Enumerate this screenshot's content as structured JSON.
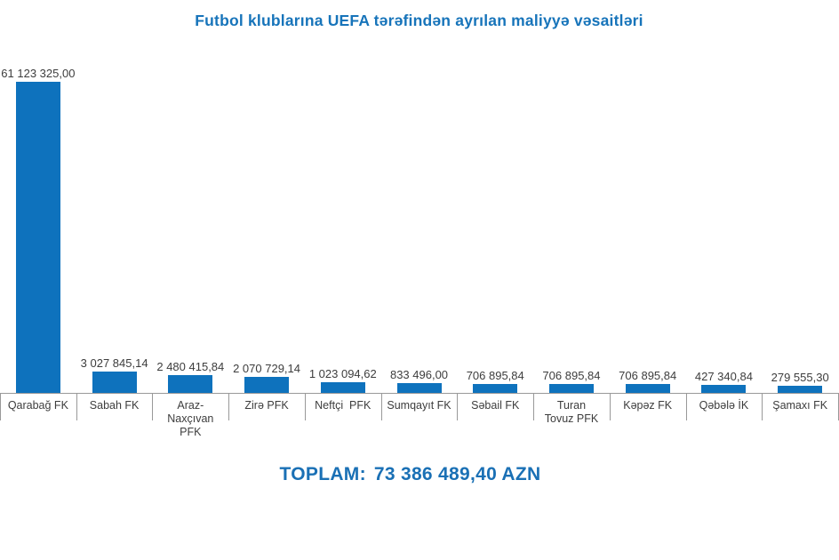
{
  "title": "Futbol klublarına UEFA tərəfindən ayrılan maliyyə vəsaitləri",
  "total": {
    "label": "TOPLAM:",
    "amount": "73 386 489,40 AZN"
  },
  "colors": {
    "bar": "#0e72bd",
    "title": "#1774ba",
    "total": "#1a70b5",
    "axis": "#999999",
    "text": "#3d3d3d"
  },
  "chart_data": {
    "type": "bar",
    "title": "Futbol klublarına UEFA tərəfindən ayrılan maliyyə vəsaitləri",
    "xlabel": "",
    "ylabel": "",
    "unit": "AZN",
    "grid": false,
    "legend": false,
    "ylim": [
      0,
      61123325
    ],
    "categories": [
      "Qarabağ FK",
      "Sabah FK",
      "Araz-Naxçıvan PFK",
      "Zirə PFK",
      "Neftçi PFK",
      "Sumqayıt FK",
      "Səbail FK",
      "Turan Tovuz PFK",
      "Kəpəz FK",
      "Qəbələ İK",
      "Şamaxı FK"
    ],
    "values": [
      61123325.0,
      3027845.14,
      2480415.84,
      2070729.14,
      1023094.62,
      833496.0,
      706895.84,
      706895.84,
      706895.84,
      427340.84,
      279555.3
    ],
    "value_labels": [
      "61 123 325,00",
      "3 027 845,14",
      "2 480 415,84",
      "2 070 729,14",
      "1 023 094,62",
      "833 496,00",
      "706 895,84",
      "706 895,84",
      "706 895,84",
      "427 340,84",
      "279 555,30"
    ],
    "tick_lines": [
      [
        "Qarabağ FK"
      ],
      [
        "Sabah FK"
      ],
      [
        "Araz-",
        "Naxçıvan",
        "PFK"
      ],
      [
        "Zirə PFK"
      ],
      [
        "Neftçi  PFK"
      ],
      [
        "Sumqayıt FK"
      ],
      [
        "Səbail FK"
      ],
      [
        "Turan",
        "Tovuz PFK"
      ],
      [
        "Kəpəz FK"
      ],
      [
        "Qəbələ İK"
      ],
      [
        "Şamaxı FK"
      ]
    ],
    "total_value": 73386489.4
  }
}
